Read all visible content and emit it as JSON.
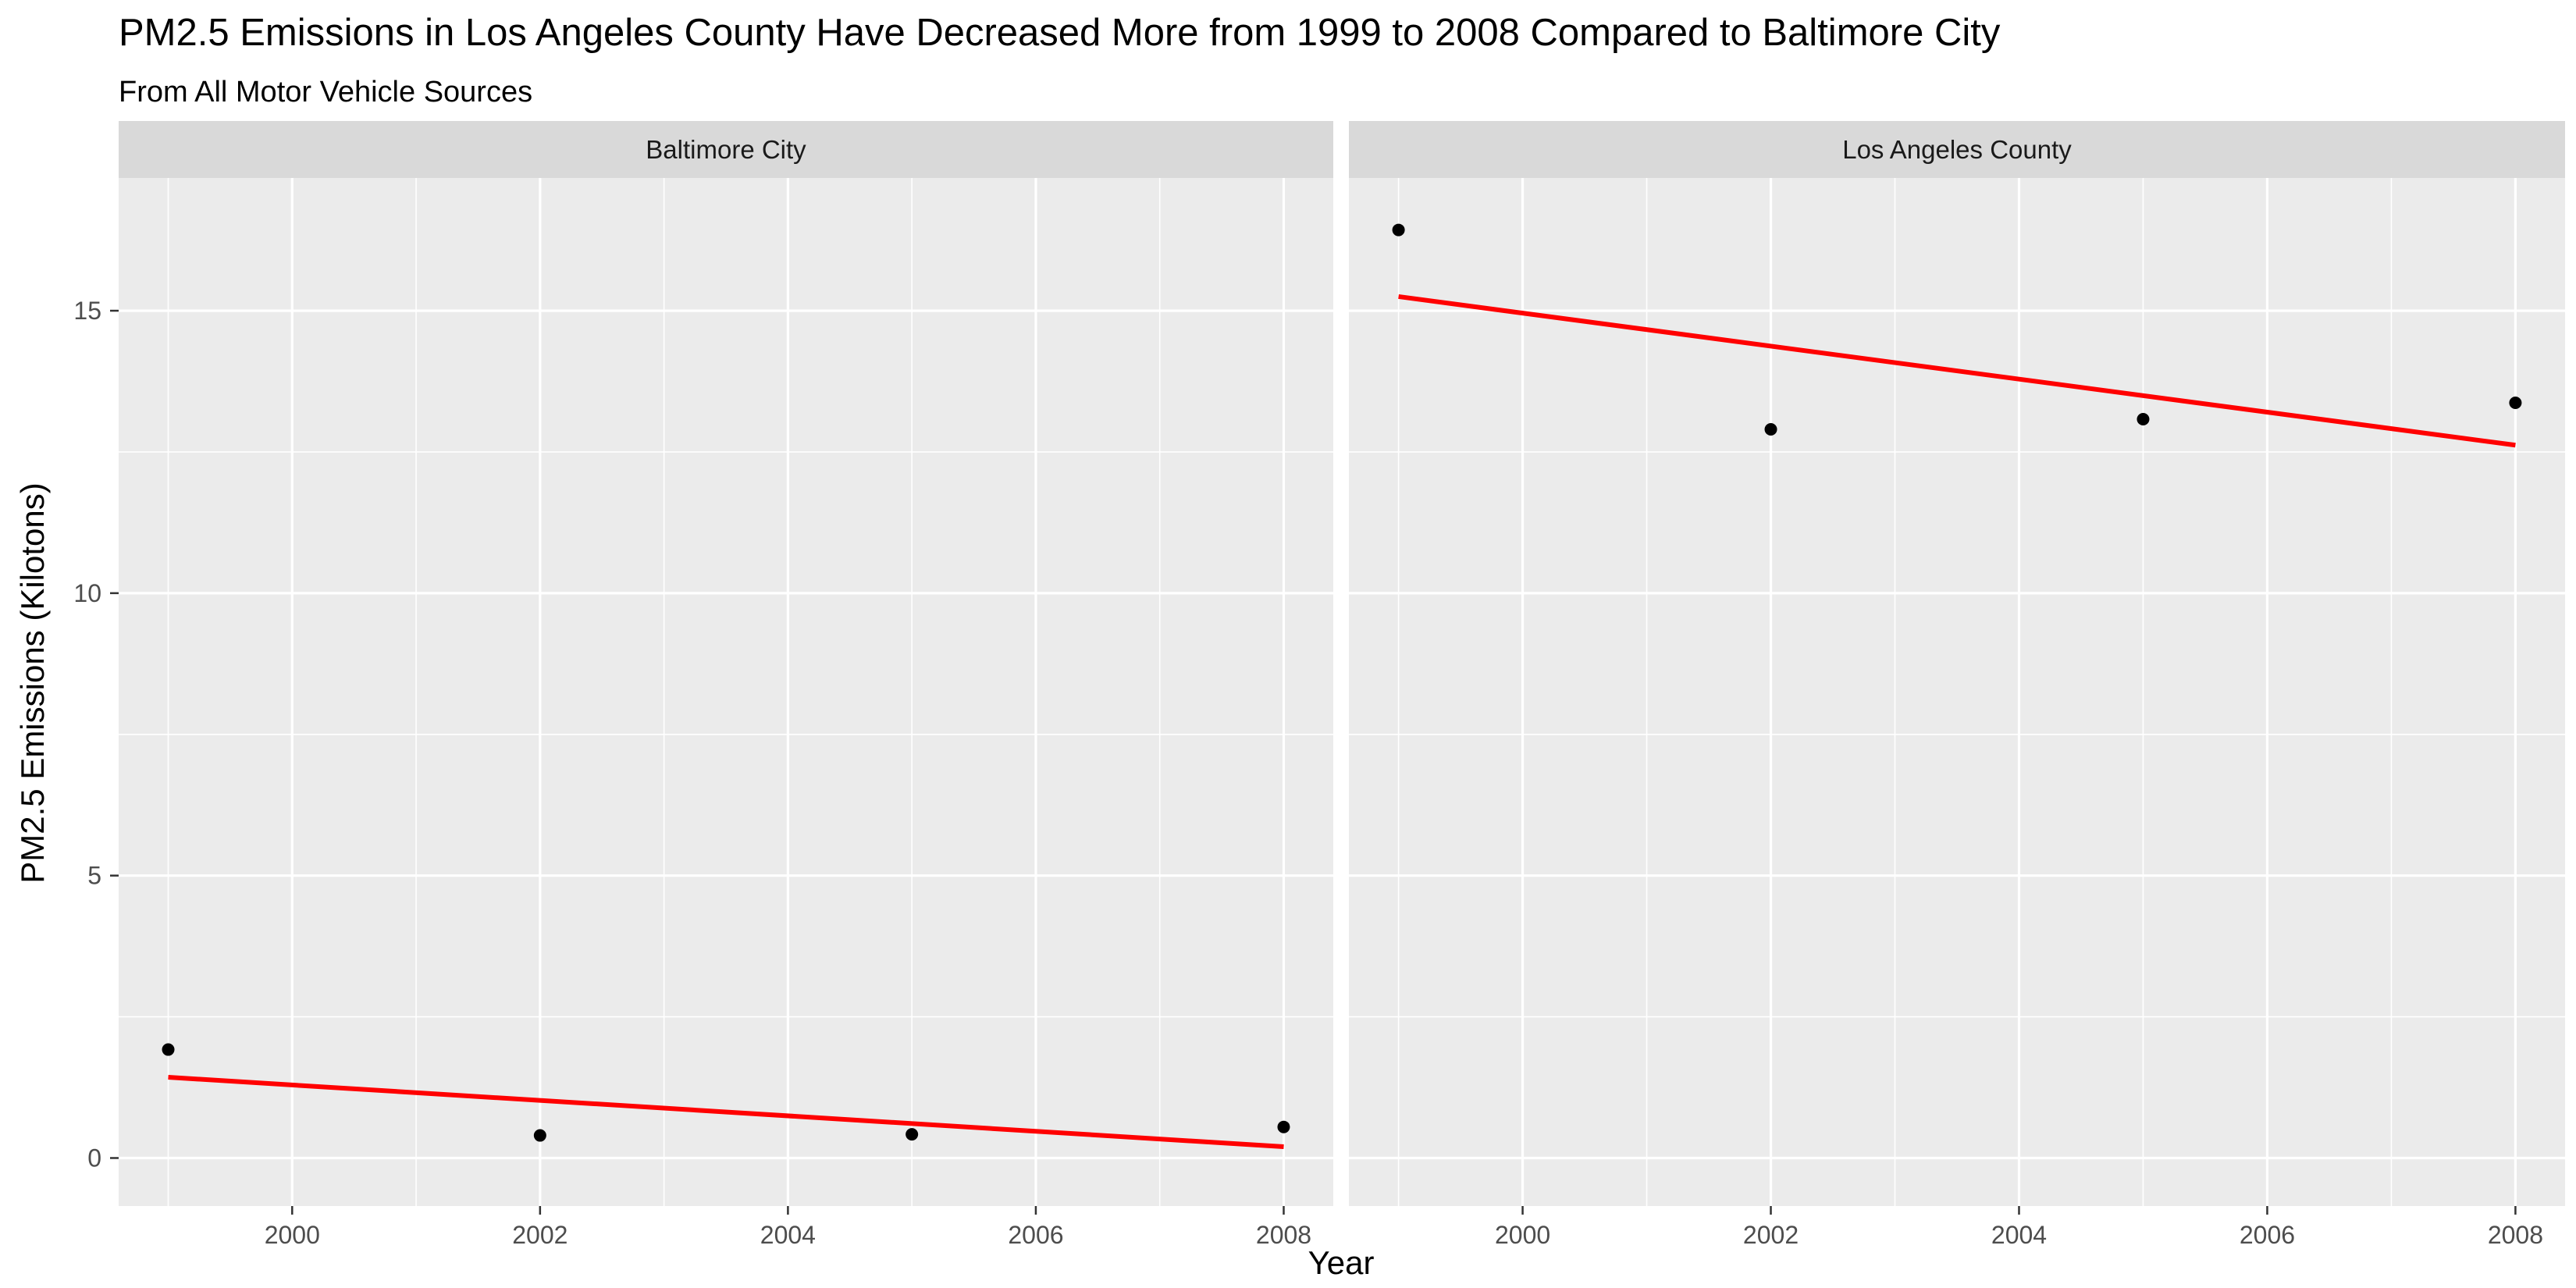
{
  "chart_data": {
    "type": "scatter",
    "title": "PM2.5 Emissions in Los Angeles County Have Decreased More from 1999 to 2008 Compared to Baltimore City",
    "subtitle": "From All Motor Vehicle Sources",
    "xlabel": "Year",
    "ylabel": "PM2.5 Emissions (Kilotons)",
    "xlim": [
      1998.6,
      2008.4
    ],
    "ylim": [
      -0.85,
      17.35
    ],
    "x_ticks": [
      2000,
      2002,
      2004,
      2006,
      2008
    ],
    "y_ticks": [
      0,
      5,
      10,
      15
    ],
    "grid": true,
    "point_color": "#000000",
    "trend_color": "#ff0000",
    "panel_background": "#ebebeb",
    "strip_background": "#d9d9d9",
    "panels": [
      {
        "name": "Baltimore City",
        "points": [
          {
            "x": 1999,
            "y": 1.92
          },
          {
            "x": 2002,
            "y": 0.4
          },
          {
            "x": 2005,
            "y": 0.42
          },
          {
            "x": 2008,
            "y": 0.55
          }
        ],
        "trend": [
          {
            "x": 1999,
            "y": 1.43
          },
          {
            "x": 2008,
            "y": 0.2
          }
        ]
      },
      {
        "name": "Los Angeles County",
        "points": [
          {
            "x": 1999,
            "y": 16.43
          },
          {
            "x": 2002,
            "y": 12.9
          },
          {
            "x": 2005,
            "y": 13.08
          },
          {
            "x": 2008,
            "y": 13.37
          }
        ],
        "trend": [
          {
            "x": 1999,
            "y": 15.25
          },
          {
            "x": 2008,
            "y": 12.62
          }
        ]
      }
    ]
  }
}
